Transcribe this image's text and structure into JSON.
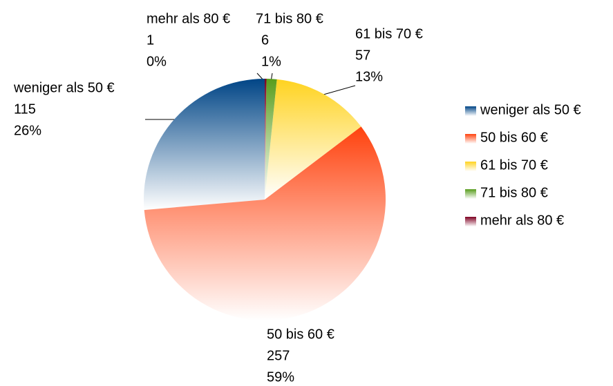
{
  "chart_data": {
    "type": "pie",
    "categories": [
      "weniger als 50 €",
      "50 bis 60 €",
      "61 bis 70 €",
      "71 bis 80 €",
      "mehr als 80 €"
    ],
    "values": [
      115,
      257,
      57,
      6,
      1
    ],
    "percent_labels": [
      "26%",
      "59%",
      "13%",
      "1%",
      "0%"
    ],
    "colors": [
      "#004586",
      "#ff420e",
      "#ffd320",
      "#579d1c",
      "#7e0021"
    ],
    "legend": "right"
  }
}
